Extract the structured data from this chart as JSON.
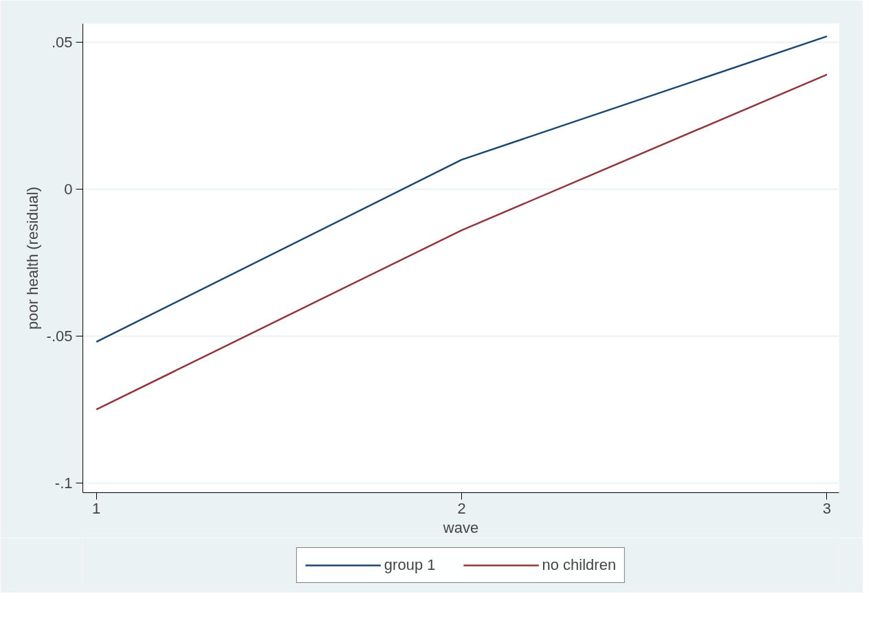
{
  "chart_data": {
    "type": "line",
    "xlabel": "wave",
    "ylabel": "poor health (residual)",
    "x": [
      1,
      2,
      3
    ],
    "series": [
      {
        "name": "group 1",
        "color": "#1a476f",
        "values": [
          -0.052,
          0.01,
          0.052
        ]
      },
      {
        "name": "no children",
        "color": "#90353b",
        "values": [
          -0.075,
          -0.014,
          0.039
        ]
      }
    ],
    "xlim": [
      0.963,
      3.033
    ],
    "ylim": [
      -0.1033,
      0.0563
    ],
    "xticks": [
      1,
      2,
      3
    ],
    "yticks": [
      {
        "value": -0.1,
        "label": "-.1"
      },
      {
        "value": -0.05,
        "label": "-.05"
      },
      {
        "value": 0,
        "label": "0"
      },
      {
        "value": 0.05,
        "label": ".05"
      }
    ],
    "grid": "y",
    "legend": "bottom",
    "marker": "none",
    "line_style": "solid"
  }
}
